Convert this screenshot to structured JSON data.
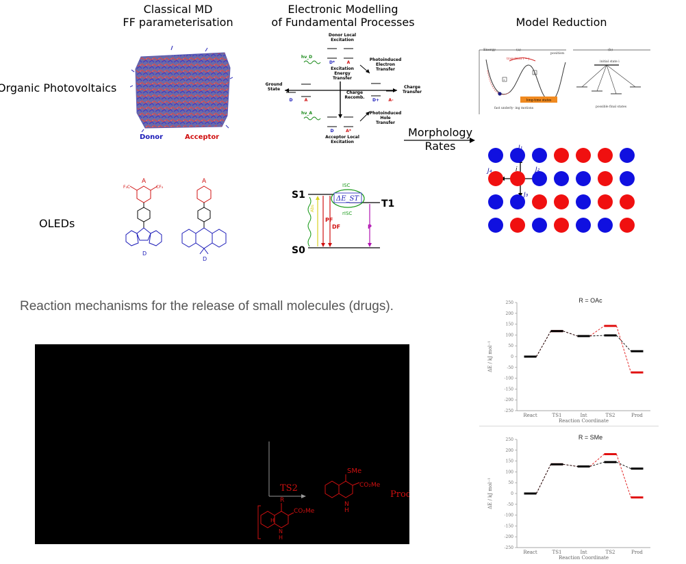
{
  "headers": {
    "classical_md": [
      "Classical MD",
      "FF parameterisation"
    ],
    "electronic": [
      "Electronic Modelling",
      "of Fundamental Processes"
    ],
    "model_reduction": "Model Reduction"
  },
  "rows": {
    "opv": "Organic Photovoltaics",
    "oleds": "OLEDs"
  },
  "md_labels": {
    "donor": "Donor",
    "acceptor": "Acceptor"
  },
  "morphology_arrow": {
    "line1": "Morphology",
    "line2": "Rates"
  },
  "opv_diagram": {
    "donor_local_excitation": [
      "Donor Local",
      "Excitation"
    ],
    "acceptor_local_excitation": [
      "Acceptor Local",
      "Excitation"
    ],
    "ground_state": [
      "Ground",
      "State"
    ],
    "excitation_energy_transfer": [
      "Excitation",
      "Energy",
      "Transfer"
    ],
    "photoinduced_electron_transfer": [
      "Photoinduced",
      "Electron",
      "Transfer"
    ],
    "photoinduced_hole_transfer": [
      "Photoinduced",
      "Hole",
      "Transfer"
    ],
    "charge_recomb": [
      "Charge",
      "Recomb."
    ],
    "charge_transfer": [
      "Charge",
      "Transfer"
    ],
    "D": "D",
    "A": "A",
    "Dstar": "D*",
    "Astar": "A*",
    "Dplus": "D+",
    "Aminus": "A-",
    "hvD": "hν_D",
    "hvA": "hν_A"
  },
  "oled_diagram": {
    "S1": "S1",
    "S0": "S0",
    "T1": "T1",
    "ISC": "ISC",
    "rISC": "rISC",
    "dEst": "ΔE_ST",
    "PF": "PF",
    "DF": "DF",
    "P": "P",
    "Abs": "Abs"
  },
  "molecules": {
    "A": "A",
    "D": "D",
    "CF3": "CF₃",
    "F3C": "F₃C"
  },
  "energy_landscape": {
    "energy": "Energy",
    "position": "position",
    "a": "(a)",
    "b": "(b)",
    "transition": "transition i → j",
    "i": "i",
    "j": "j",
    "long_time_states": "long-time states",
    "fast_motions": "fast underly-\ning motions",
    "initial_state": "initial state i",
    "possible_final": "possible final states"
  },
  "lattice": {
    "labels": {
      "i": "i",
      "J1": "J₁",
      "J2": "J₂",
      "J3": "J₃",
      "J4": "J₄"
    },
    "colors": {
      "blue": "#1010e0",
      "red": "#f01010"
    },
    "grid": [
      [
        "blue",
        "blue",
        "blue",
        "red",
        "red",
        "red",
        "blue"
      ],
      [
        "red",
        "red",
        "blue",
        "blue",
        "blue",
        "red",
        "blue"
      ],
      [
        "blue",
        "blue",
        "red",
        "red",
        "blue",
        "red",
        "red"
      ],
      [
        "blue",
        "red",
        "blue",
        "red",
        "blue",
        "blue",
        "red"
      ]
    ]
  },
  "caption": "Reaction mechanisms for the release of small molecules (drugs).",
  "black_panel": {
    "TS2": "TS2",
    "SMe": "SMe",
    "CO2Me_top": "CO₂Me",
    "CO2Me_bottom": "CO₂Me",
    "Prod": "Prod",
    "R": "R",
    "H": "H",
    "N": "N"
  },
  "chart_data": [
    {
      "type": "line",
      "title": "R = OAc",
      "xlabel": "Reaction Coordinate",
      "ylabel": "ΔE / kJ mol⁻¹",
      "categories": [
        "React",
        "TS1",
        "Int",
        "TS2",
        "Prod"
      ],
      "ylim": [
        -250,
        250
      ],
      "yticks": [
        250,
        200,
        150,
        100,
        50,
        0,
        -50,
        -100,
        -150,
        -200,
        -250
      ],
      "series": [
        {
          "color": "#000000",
          "values": [
            0,
            118,
            95,
            98,
            25
          ]
        },
        {
          "color": "#e01010",
          "values": [
            0,
            118,
            95,
            142,
            -73
          ]
        }
      ]
    },
    {
      "type": "line",
      "title": "R = SMe",
      "xlabel": "Reaction Coordinate",
      "ylabel": "ΔE / kJ mol⁻¹",
      "categories": [
        "React",
        "TS1",
        "Int",
        "TS2",
        "Prod"
      ],
      "ylim": [
        -250,
        250
      ],
      "yticks": [
        250,
        200,
        150,
        100,
        50,
        0,
        -50,
        -100,
        -150,
        -200,
        -250
      ],
      "series": [
        {
          "color": "#000000",
          "values": [
            0,
            135,
            125,
            145,
            115
          ]
        },
        {
          "color": "#e01010",
          "values": [
            0,
            135,
            125,
            182,
            -18
          ]
        }
      ]
    }
  ]
}
